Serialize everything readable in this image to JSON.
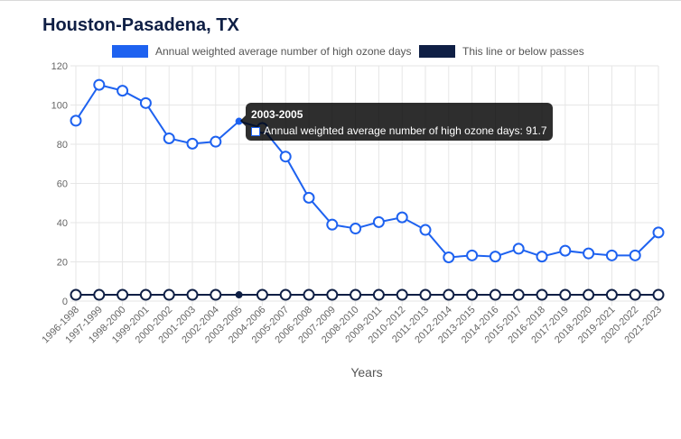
{
  "chart_data": {
    "type": "line",
    "title": "Houston-Pasadena, TX",
    "xlabel": "Years",
    "ylabel": "",
    "ylim": [
      0,
      120
    ],
    "yticks": [
      0,
      20,
      40,
      60,
      80,
      100,
      120
    ],
    "grid": true,
    "legend_position": "top",
    "categories": [
      "1996-1998",
      "1997-1999",
      "1998-2000",
      "1999-2001",
      "2000-2002",
      "2001-2003",
      "2002-2004",
      "2003-2005",
      "2004-2006",
      "2005-2007",
      "2006-2008",
      "2007-2009",
      "2008-2010",
      "2009-2011",
      "2010-2012",
      "2011-2013",
      "2012-2014",
      "2013-2015",
      "2014-2016",
      "2015-2017",
      "2016-2018",
      "2017-2019",
      "2018-2020",
      "2019-2021",
      "2020-2022",
      "2021-2023"
    ],
    "series": [
      {
        "name": "Annual weighted average number of high ozone days",
        "color": "#1e62f0",
        "values": [
          92,
          110.3,
          107.3,
          101,
          83,
          80.3,
          81.3,
          91.7,
          88.3,
          73.7,
          52.7,
          39,
          37,
          40.3,
          42.7,
          36.3,
          22.3,
          23.3,
          22.7,
          26.7,
          22.7,
          25.7,
          24.3,
          23.3,
          23.3,
          35
        ]
      },
      {
        "name": "This line or below passes",
        "color": "#0f1f45",
        "values": [
          3.2,
          3.2,
          3.2,
          3.2,
          3.2,
          3.2,
          3.2,
          3.2,
          3.2,
          3.2,
          3.2,
          3.2,
          3.2,
          3.2,
          3.2,
          3.2,
          3.2,
          3.2,
          3.2,
          3.2,
          3.2,
          3.2,
          3.2,
          3.2,
          3.2,
          3.2
        ]
      }
    ],
    "tooltip": {
      "title": "2003-2005",
      "body": "Annual weighted average number of high ozone days: 91.7",
      "index": 7
    }
  }
}
